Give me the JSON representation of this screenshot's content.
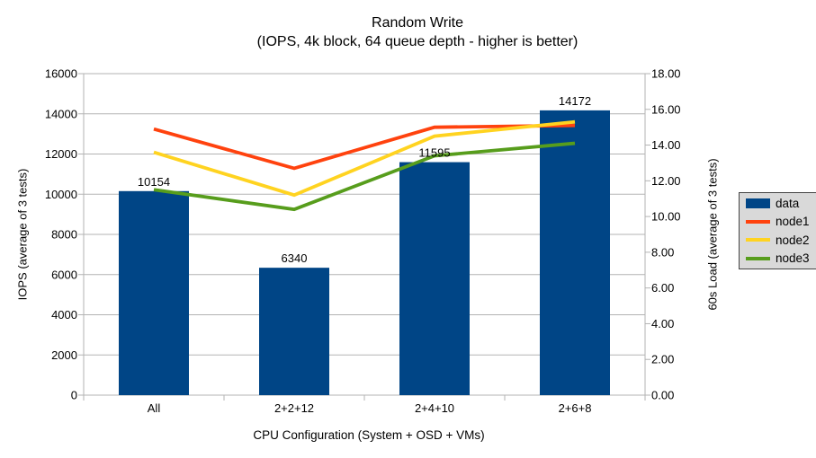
{
  "title": {
    "line1": "Random Write",
    "line2": "(IOPS, 4k block, 64 queue depth - higher is better)"
  },
  "chart_data": {
    "type": "bar+line combo",
    "categories": [
      "All",
      "2+2+12",
      "2+4+10",
      "2+6+8"
    ],
    "xlabel": "CPU Configuration (System + OSD + VMs)",
    "left_axis": {
      "label": "IOPS (average of 3 tests)",
      "min": 0,
      "max": 16000,
      "step": 2000,
      "tick_labels": [
        "0",
        "2000",
        "4000",
        "6000",
        "8000",
        "10000",
        "12000",
        "14000",
        "16000"
      ]
    },
    "right_axis": {
      "label": "60s Load (average of 3 tests)",
      "min": 0,
      "max": 18,
      "step": 2,
      "tick_labels": [
        "0.00",
        "2.00",
        "4.00",
        "6.00",
        "8.00",
        "10.00",
        "12.00",
        "14.00",
        "16.00",
        "18.00"
      ]
    },
    "bar_series": {
      "name": "data",
      "axis": "left",
      "color": "#004586",
      "values": [
        10154,
        6340,
        11595,
        14172
      ],
      "value_labels": [
        "10154",
        "6340",
        "11595",
        "14172"
      ]
    },
    "line_series": [
      {
        "name": "node1",
        "axis": "right",
        "color": "#FF420E",
        "values": [
          14.9,
          12.7,
          15.0,
          15.1
        ]
      },
      {
        "name": "node2",
        "axis": "right",
        "color": "#FFD320",
        "values": [
          13.6,
          11.2,
          14.5,
          15.3
        ]
      },
      {
        "name": "node3",
        "axis": "right",
        "color": "#579D1C",
        "values": [
          11.5,
          10.4,
          13.4,
          14.1
        ]
      }
    ],
    "grid": "horizontal",
    "legend_position": "right"
  },
  "colors": {
    "background": "#ffffff",
    "grid": "#b3b3b3",
    "text": "#000000",
    "legend_bg": "#d9d9d9",
    "legend_border": "#444444"
  }
}
